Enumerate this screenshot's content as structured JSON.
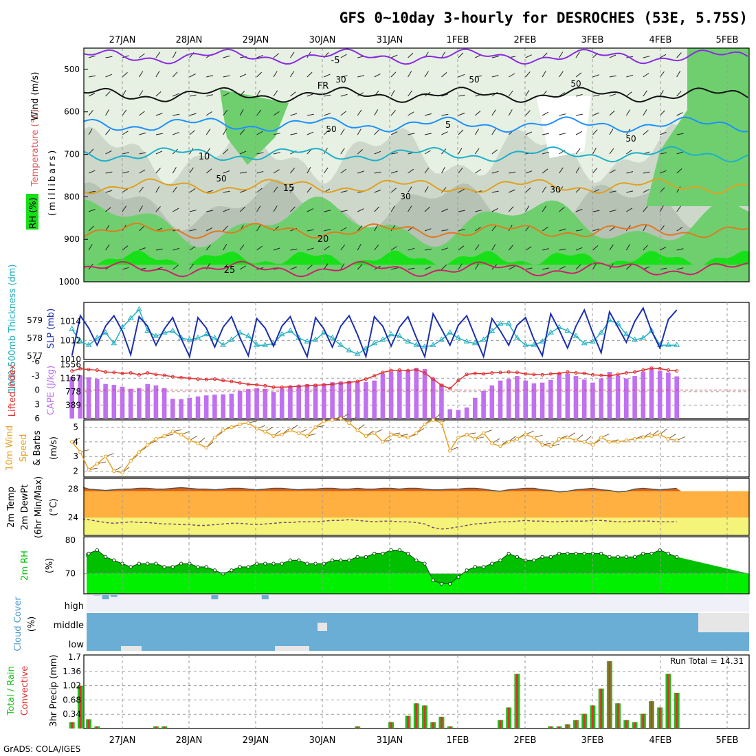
{
  "title": "GFS 0~10day 3-hourly for DESROCHES (53E, 5.75S)",
  "footer": "GrADS: COLA/IGES",
  "colors": {
    "rh_light": "#e6f0e3",
    "rh_mid": "#cdd8cb",
    "rh_dark": "#b6c2b4",
    "rh_green": "#6fcf6f",
    "rh_bright": "#18e018",
    "t_m5": "#8a2be2",
    "t_0": "#111111",
    "t_5": "#1e90ff",
    "t_10": "#1cb0c8",
    "t_15": "#e0a020",
    "t_20": "#e07a20",
    "t_25": "#d01e6e",
    "slp": "#1a2fb0",
    "thk": "#22b0c0",
    "li": "#e03030",
    "cape": "#c070f0",
    "wind10": "#e8a020",
    "temp_top": "#e06010",
    "temp_fill": "#ffb040",
    "dew_fill": "#f4f47a",
    "rh2m_dark": "#00c000",
    "rh2m_light": "#00f000",
    "cloud": "#6aaed6",
    "precip_total": "#20c020",
    "precip_conv": "#e03030"
  },
  "dates": [
    "27JAN",
    "28JAN",
    "29JAN",
    "30JAN",
    "31JAN",
    "1FEB",
    "2FEB",
    "3FEB",
    "4FEB",
    "5FEB"
  ],
  "panels": {
    "upper": {
      "ylabel_wind": "Wind (m/s)",
      "ylabel_temp": "Temperature (°C)",
      "ylabel_rh": "RH (%)",
      "ylabel_p": "(millibars)",
      "pticks": [
        "500",
        "600",
        "700",
        "800",
        "900",
        "1000"
      ]
    },
    "thickness": {
      "ylabel_thk": "1000-500mb Thickness (dm)",
      "ylabel_slp": "SLP (mb)",
      "thk_ticks": [
        "579",
        "578",
        "577"
      ],
      "slp_ticks": [
        "1014",
        "1012",
        "1010"
      ]
    },
    "cape": {
      "ylabel_li": "Lifted Index",
      "ylabel_cape": "CAPE (J/kg)",
      "li_ticks": [
        "-6",
        "-3",
        "0",
        "3",
        "6"
      ],
      "cape_ticks": [
        "1556",
        "1167",
        "778",
        "389"
      ]
    },
    "wind": {
      "ylabel1": "10m Wind",
      "ylabel2": "Speed",
      "ylabel3": "& Barbs",
      "unit": "(m/s)",
      "ticks": [
        "5",
        "4",
        "3",
        "2"
      ]
    },
    "temp": {
      "ylabel1": "2m Temp",
      "ylabel2": "2m DewPt",
      "ylabel3": "(6hr Min/Max)",
      "unit": "(°C)",
      "ticks": [
        "28",
        "24"
      ]
    },
    "rh": {
      "ylabel": "2m RH",
      "unit": "(%)",
      "ticks": [
        "80",
        "70"
      ]
    },
    "cloud": {
      "ylabel": "Cloud Cover",
      "unit": "(%)",
      "levels": [
        "high",
        "middle",
        "low"
      ]
    },
    "precip": {
      "ylabel1": "Total / Rain",
      "ylabel2": "Convective",
      "unit": "3hr Precip (mm)",
      "ticks": [
        "1.7",
        "1.36",
        "1.02",
        "0.68",
        "0.34",
        "0"
      ],
      "run_total": "Run Total = 14.31"
    }
  },
  "chart_data": [
    {
      "type": "contour",
      "name": "upper-air cross-section",
      "y_axis": "pressure (mb)",
      "ylim": [
        450,
        1000
      ],
      "contour_labels_temperature": [
        "-5",
        "FR",
        "5",
        "10",
        "15",
        "20",
        "25"
      ],
      "contour_labels_rh": [
        "30",
        "50",
        "50",
        "50",
        "50",
        "30",
        "30",
        "50"
      ],
      "temperature_isotherms_mb": {
        "-5": 470,
        "0": 560,
        "5": 630,
        "10": 700,
        "15": 775,
        "20": 880,
        "25": 970
      }
    },
    {
      "type": "line",
      "name": "SLP and 1000-500mb thickness",
      "slp_ylim": [
        1010,
        1016
      ],
      "thk_ylim": [
        576.8,
        580
      ],
      "slp_mb": [
        1010.4,
        1014.6,
        1013.3,
        1011.5,
        1013.5,
        1014.6,
        1013.0,
        1010.5,
        1014.5,
        1013.5,
        1011.5,
        1013.2,
        1014.4,
        1012.2,
        1010.3,
        1014.4,
        1013.3,
        1011.3,
        1013.4,
        1014.5,
        1012.3,
        1010.4,
        1014.3,
        1013.3,
        1011.4,
        1013.5,
        1014.5,
        1012.2,
        1010.3,
        1014.4,
        1013.2,
        1011.3,
        1013.5,
        1014.6,
        1012.6,
        1010.3,
        1014.5,
        1013.5,
        1011.4,
        1013.4,
        1014.5,
        1012.3,
        1010.3,
        1014.8,
        1013.2,
        1011.5,
        1013.6,
        1014.6,
        1012.4,
        1010.3,
        1014.3,
        1013.0,
        1011.5,
        1013.6,
        1014.4,
        1012.1,
        1010.4,
        1014.8,
        1013.1,
        1011.2,
        1013.5,
        1015.2,
        1012.8,
        1010.7,
        1015.0,
        1013.4,
        1011.8,
        1014.0,
        1015.4,
        1013.0,
        1011.2,
        1014.2,
        1015.2
      ],
      "thickness_dm": [
        578.5,
        577.8,
        577.6,
        578.0,
        578.3,
        577.7,
        578.6,
        579.1,
        579.6,
        578.4,
        578.1,
        578.3,
        578.4,
        578.0,
        577.9,
        578.0,
        578.2,
        578.0,
        577.6,
        577.9,
        578.3,
        578.1,
        577.6,
        577.6,
        577.7,
        578.2,
        578.4,
        578.0,
        577.8,
        577.9,
        578.3,
        578.0,
        577.6,
        577.3,
        577.1,
        577.4,
        577.7,
        577.9,
        578.2,
        578.1,
        577.8,
        577.6,
        577.5,
        577.6,
        577.9,
        578.3,
        578.0,
        577.8,
        577.7,
        577.9,
        578.4,
        578.8,
        578.8,
        578.0,
        577.6,
        577.6,
        577.8,
        578.3,
        578.6,
        578.4,
        578.1,
        577.7,
        577.8,
        578.3,
        579.0,
        578.8,
        578.2,
        577.9,
        578.0,
        578.4,
        577.6,
        577.6,
        577.6
      ]
    },
    {
      "type": "bar",
      "name": "CAPE and Lifted Index",
      "cape_ylim": [
        0,
        1556
      ],
      "li_ylim": [
        6,
        -6
      ],
      "cape_jkg": [
        1200,
        1250,
        1190,
        1150,
        1000,
        975,
        920,
        860,
        880,
        1000,
        960,
        880,
        570,
        560,
        600,
        640,
        670,
        690,
        700,
        720,
        800,
        850,
        880,
        860,
        770,
        870,
        930,
        960,
        990,
        990,
        1010,
        1050,
        1070,
        1090,
        1080,
        1060,
        1100,
        1300,
        1360,
        1380,
        1400,
        1460,
        1430,
        1180,
        1000,
        270,
        250,
        320,
        600,
        800,
        960,
        1100,
        1150,
        1230,
        1100,
        1020,
        1040,
        1120,
        1310,
        1300,
        1230,
        1130,
        1040,
        1160,
        1350,
        1240,
        1160,
        1230,
        1350,
        1460,
        1380,
        1330,
        1220
      ],
      "lifted_index": [
        -4.0,
        -4.5,
        -4.3,
        -4.2,
        -3.8,
        -3.7,
        -3.5,
        -3.6,
        -3.2,
        -3.6,
        -3.3,
        -3.1,
        -2.8,
        -2.6,
        -2.5,
        -2.3,
        -2.2,
        -2.3,
        -2.0,
        -1.8,
        -1.5,
        -1.2,
        -1.1,
        -0.9,
        -0.6,
        -0.6,
        -0.7,
        -0.8,
        -0.9,
        -1.0,
        -1.1,
        -1.2,
        -1.4,
        -1.6,
        -1.8,
        -2.3,
        -3.0,
        -3.7,
        -4.1,
        -4.2,
        -4.1,
        -4.3,
        -3.6,
        -2.3,
        -1.0,
        -0.3,
        -2.0,
        -3.3,
        -3.5,
        -3.4,
        -3.6,
        -3.7,
        -3.8,
        -3.7,
        -3.4,
        -3.3,
        -3.2,
        -3.4,
        -3.5,
        -3.8,
        -3.6,
        -3.5,
        -3.2,
        -3.1,
        -3.0,
        -3.3,
        -3.6,
        -3.8,
        -4.2,
        -4.6,
        -4.5,
        -4.2,
        -4.0
      ]
    },
    {
      "type": "line",
      "name": "10m wind speed",
      "ylim": [
        1.6,
        5.5
      ],
      "speed_ms": [
        4.0,
        3.3,
        2.1,
        2.5,
        3.0,
        2.0,
        1.9,
        2.7,
        3.3,
        3.8,
        4.2,
        4.4,
        4.7,
        4.5,
        4.1,
        3.9,
        3.6,
        4.3,
        4.8,
        5.0,
        5.2,
        5.3,
        4.9,
        4.7,
        4.4,
        4.5,
        4.8,
        4.6,
        4.4,
        5.0,
        5.4,
        5.5,
        5.6,
        5.3,
        4.8,
        4.4,
        4.6,
        4.0,
        4.5,
        4.4,
        4.3,
        4.6,
        5.2,
        5.5,
        5.3,
        3.4,
        4.3,
        4.5,
        4.2,
        4.6,
        3.9,
        3.7,
        4.0,
        4.2,
        4.5,
        4.3,
        3.8,
        3.7,
        4.2,
        4.3,
        4.1,
        4.0,
        3.8,
        4.3,
        4.0,
        4.0,
        4.1,
        4.2,
        4.3,
        4.4,
        4.5,
        4.2,
        4.1
      ]
    },
    {
      "type": "area",
      "name": "2m temperature and dew point",
      "ylim": [
        21.5,
        29.5
      ],
      "temp_c": [
        28.1,
        28.2,
        28.0,
        27.9,
        27.8,
        27.9,
        28.0,
        28.0,
        28.1,
        28.1,
        28.0,
        28.0,
        28.1,
        28.2,
        28.1,
        28.0,
        28.0,
        27.9,
        28.0,
        28.1,
        28.1,
        28.0,
        27.9,
        28.0,
        28.1,
        28.1,
        28.0,
        27.9,
        28.0,
        28.0,
        28.1,
        28.1,
        28.0,
        28.0,
        28.1,
        28.0,
        28.0,
        28.1,
        28.1,
        28.0,
        28.1,
        28.1,
        28.0,
        27.9,
        27.9,
        28.0,
        28.0,
        28.1,
        28.1,
        28.0,
        27.8,
        27.7,
        27.9,
        28.0,
        28.1,
        28.1,
        27.9,
        27.8,
        27.6,
        27.7,
        27.9,
        28.0,
        28.1,
        27.9,
        27.8,
        27.6,
        27.7,
        28.0,
        28.1,
        28.0,
        27.9,
        28.0,
        28.1
      ],
      "dewpoint_c": [
        23.6,
        23.8,
        23.7,
        23.5,
        23.3,
        23.2,
        23.3,
        23.4,
        23.3,
        23.3,
        23.2,
        23.1,
        23.1,
        23.0,
        23.0,
        22.9,
        22.9,
        23.0,
        23.1,
        23.2,
        23.2,
        23.1,
        23.0,
        23.1,
        23.2,
        23.3,
        23.3,
        23.4,
        23.4,
        23.4,
        23.5,
        23.6,
        23.6,
        23.7,
        23.6,
        23.5,
        23.4,
        23.5,
        23.5,
        23.4,
        23.4,
        23.3,
        23.1,
        22.6,
        22.4,
        22.5,
        22.7,
        22.9,
        23.1,
        23.2,
        23.3,
        23.4,
        23.4,
        23.5,
        23.6,
        23.5,
        23.5,
        23.4,
        23.4,
        23.5,
        23.5,
        23.5,
        23.6,
        23.6,
        23.5,
        23.4,
        23.4,
        23.5,
        23.5,
        23.5,
        23.4,
        23.4,
        23.4
      ]
    },
    {
      "type": "area",
      "name": "2m relative humidity",
      "ylim": [
        64,
        81
      ],
      "rh_pct": [
        75,
        76,
        76,
        77,
        75,
        74,
        73,
        72,
        73,
        73,
        73,
        72,
        72,
        73,
        73,
        72,
        72,
        71,
        70,
        71,
        72,
        72,
        73,
        73,
        73,
        73,
        74,
        74,
        73,
        73,
        73,
        74,
        74,
        74,
        75,
        75,
        76,
        76,
        77,
        77,
        76,
        74,
        73,
        68,
        67,
        67,
        69,
        71,
        72,
        72,
        73,
        74,
        76,
        75,
        74,
        74,
        75,
        75,
        76,
        76,
        76,
        76,
        76,
        76,
        75,
        75,
        75,
        75,
        76,
        76,
        77,
        76,
        75
      ],
      "cloud_high_pct": [
        0,
        0,
        0,
        2,
        25,
        10,
        0,
        0,
        0,
        0,
        0,
        0,
        0,
        0,
        0,
        0,
        0,
        25,
        0,
        0,
        0,
        0,
        0,
        25,
        0,
        0,
        0,
        0,
        0,
        0,
        0,
        0,
        0,
        0,
        0,
        0,
        0,
        0,
        0,
        0,
        0,
        0,
        0,
        0,
        0,
        0,
        0,
        0,
        0,
        0,
        0,
        0,
        0,
        0,
        0,
        0,
        0,
        0,
        0,
        0,
        0,
        0,
        0,
        0,
        0,
        0,
        0,
        0,
        0,
        0,
        0,
        0,
        0
      ]
    },
    {
      "type": "bar",
      "name": "3hr precipitation",
      "ylim": [
        0,
        1.7
      ],
      "run_total_mm": 14.31,
      "total_mm": [
        0.15,
        1.02,
        0.22,
        0.05,
        0,
        0,
        0,
        0,
        0,
        0,
        0.05,
        0.05,
        0,
        0,
        0,
        0,
        0,
        0,
        0,
        0,
        0,
        0,
        0,
        0,
        0,
        0,
        0,
        0,
        0,
        0,
        0,
        0,
        0,
        0,
        0.05,
        0,
        0,
        0,
        0.15,
        0,
        0.3,
        0.6,
        0.55,
        0.15,
        0.28,
        0.05,
        0,
        0,
        0,
        0,
        0,
        0.2,
        0.5,
        1.3,
        0,
        0,
        0,
        0.05,
        0.05,
        0.1,
        0.2,
        0.35,
        0.55,
        0.95,
        1.6,
        0.6,
        0.2,
        0.15,
        0.35,
        0.65,
        0.5,
        1.3,
        0.85
      ]
    }
  ]
}
